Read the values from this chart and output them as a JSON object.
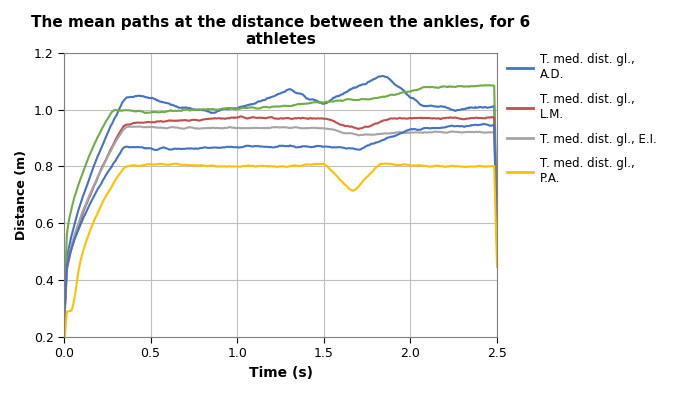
{
  "title": "The mean paths at the distance between the ankles, for 6\nathletes",
  "xlabel": "Time (s)",
  "ylabel": "Distance (m)",
  "xlim": [
    0,
    2.5
  ],
  "ylim": [
    0.2,
    1.2
  ],
  "yticks": [
    0.2,
    0.4,
    0.6,
    0.8,
    1.0,
    1.2
  ],
  "xticks": [
    0,
    0.5,
    1.0,
    1.5,
    2.0,
    2.5
  ],
  "colors": {
    "AD": "#4472C4",
    "green": "#70AD47",
    "LM": "#C0504D",
    "EI": "#A5A5A5",
    "blue2": "#4472C4",
    "PA": "#FFC000"
  },
  "legend_labels": [
    "T. med. dist. gl.,\nA.D.",
    "T. med. dist. gl.,\nL.M.",
    "T. med. dist. gl., E.I.",
    "T. med. dist. gl.,\nP.A."
  ],
  "background_color": "#ffffff"
}
